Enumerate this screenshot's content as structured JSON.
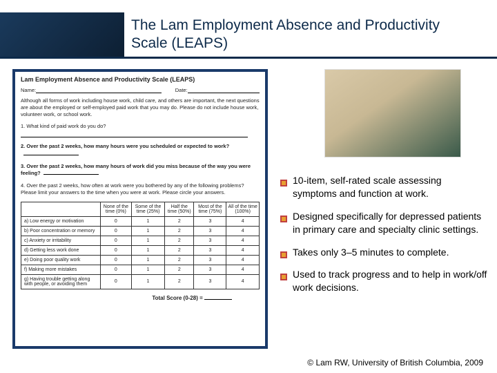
{
  "title": "The Lam Employment Absence and Productivity Scale (LEAPS)",
  "header": {
    "banner_gradient_from": "#1a3a5c",
    "banner_gradient_to": "#0d1f33",
    "rule_color": "#0d2a4a"
  },
  "form": {
    "title": "Lam Employment Absence and Productivity Scale (LEAPS)",
    "name_label": "Name:",
    "date_label": "Date:",
    "intro": "Although all forms of work including house work, child care, and others are important, the next questions are about the employed or self-employed paid work that you may do. Please do not include house work, volunteer work, or school work.",
    "q1": "1. What kind of paid work do you do?",
    "q2": "2. Over the past 2 weeks, how many hours were you scheduled or expected to work?",
    "q3": "3. Over the past 2 weeks, how many hours of work did you miss because of the way you were feeling?",
    "q4": "4. Over the past 2 weeks, how often at work were you bothered by any of the following problems? Please limit your answers to the time when you were at work. Please circle your answers.",
    "columns": [
      "None of the time (0%)",
      "Some of the time (25%)",
      "Half the time (50%)",
      "Most of the time (75%)",
      "All of the time (100%)"
    ],
    "rows": [
      {
        "label": "a) Low energy or motivation",
        "vals": [
          "0",
          "1",
          "2",
          "3",
          "4"
        ]
      },
      {
        "label": "b) Poor concentration or memory",
        "vals": [
          "0",
          "1",
          "2",
          "3",
          "4"
        ]
      },
      {
        "label": "c) Anxiety or irritability",
        "vals": [
          "0",
          "1",
          "2",
          "3",
          "4"
        ]
      },
      {
        "label": "d) Getting less work done",
        "vals": [
          "0",
          "1",
          "2",
          "3",
          "4"
        ]
      },
      {
        "label": "e) Doing poor quality work",
        "vals": [
          "0",
          "1",
          "2",
          "3",
          "4"
        ]
      },
      {
        "label": "f) Making more mistakes",
        "vals": [
          "0",
          "1",
          "2",
          "3",
          "4"
        ]
      },
      {
        "label": "g) Having trouble getting along with people, or avoiding them",
        "vals": [
          "0",
          "1",
          "2",
          "3",
          "4"
        ]
      }
    ],
    "total_label": "Total Score (0-28) ="
  },
  "bullets": [
    "10-item, self-rated scale assessing symptoms and function at work.",
    "Designed specifically for depressed patients in primary care and specialty clinic settings.",
    "Takes only 3–5 minutes to complete.",
    "Used to track progress and to help in work/off work decisions."
  ],
  "bullet_style": {
    "marker_color_outer": "#c04040",
    "marker_color_inner": "#e8a030",
    "text_color": "#000000",
    "font_size": 14
  },
  "footer": "© Lam RW, University of British Columbia, 2009"
}
